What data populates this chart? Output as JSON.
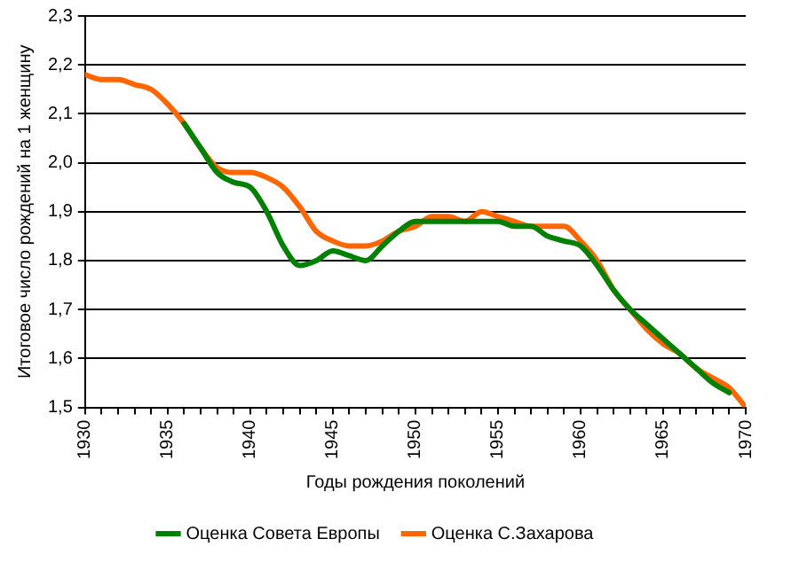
{
  "chart_data": {
    "type": "line",
    "xlabel": "Годы рождения поколений",
    "ylabel": "Итоговое число рождений на 1 женщину",
    "x": [
      1930,
      1931,
      1932,
      1933,
      1934,
      1935,
      1936,
      1937,
      1938,
      1939,
      1940,
      1941,
      1942,
      1943,
      1944,
      1945,
      1946,
      1947,
      1948,
      1949,
      1950,
      1951,
      1952,
      1953,
      1954,
      1955,
      1956,
      1957,
      1958,
      1959,
      1960,
      1961,
      1962,
      1963,
      1964,
      1965,
      1966,
      1967,
      1968,
      1969,
      1970
    ],
    "series": [
      {
        "name": "Оценка Совета Европы",
        "color": "#008000",
        "values": [
          null,
          null,
          null,
          null,
          null,
          null,
          2.08,
          2.03,
          1.98,
          1.96,
          1.95,
          1.9,
          1.83,
          1.79,
          1.8,
          1.82,
          1.81,
          1.8,
          1.83,
          1.86,
          1.88,
          1.88,
          1.88,
          1.88,
          1.88,
          1.88,
          1.87,
          1.87,
          1.85,
          1.84,
          1.83,
          1.79,
          1.74,
          1.7,
          1.67,
          1.64,
          1.61,
          1.58,
          1.55,
          1.53,
          null
        ]
      },
      {
        "name": "Оценка С.Захарова",
        "color": "#ff6600",
        "values": [
          2.18,
          2.17,
          2.17,
          2.16,
          2.15,
          2.12,
          2.08,
          2.03,
          1.99,
          1.98,
          1.98,
          1.97,
          1.95,
          1.91,
          1.86,
          1.84,
          1.83,
          1.83,
          1.84,
          1.86,
          1.87,
          1.89,
          1.89,
          1.88,
          1.9,
          1.89,
          1.88,
          1.87,
          1.87,
          1.87,
          1.84,
          1.8,
          1.74,
          1.7,
          1.66,
          1.63,
          1.61,
          1.58,
          1.56,
          1.54,
          1.5
        ]
      }
    ],
    "xlim": [
      1930,
      1970
    ],
    "xticks": [
      1930,
      {
        "value": 1931,
        "label": null
      },
      {
        "value": 1932,
        "label": null
      },
      {
        "value": 1933,
        "label": null
      },
      {
        "value": 1934,
        "label": null
      },
      1935,
      {
        "value": 1936,
        "label": null
      },
      {
        "value": 1937,
        "label": null
      },
      {
        "value": 1938,
        "label": null
      },
      {
        "value": 1939,
        "label": null
      },
      1940,
      {
        "value": 1941,
        "label": null
      },
      {
        "value": 1942,
        "label": null
      },
      {
        "value": 1943,
        "label": null
      },
      {
        "value": 1944,
        "label": null
      },
      1945,
      {
        "value": 1946,
        "label": null
      },
      {
        "value": 1947,
        "label": null
      },
      {
        "value": 1948,
        "label": null
      },
      {
        "value": 1949,
        "label": null
      },
      1950,
      {
        "value": 1951,
        "label": null
      },
      {
        "value": 1952,
        "label": null
      },
      {
        "value": 1953,
        "label": null
      },
      {
        "value": 1954,
        "label": null
      },
      1955,
      {
        "value": 1956,
        "label": null
      },
      {
        "value": 1957,
        "label": null
      },
      {
        "value": 1958,
        "label": null
      },
      {
        "value": 1959,
        "label": null
      },
      1960,
      {
        "value": 1961,
        "label": null
      },
      {
        "value": 1962,
        "label": null
      },
      {
        "value": 1963,
        "label": null
      },
      {
        "value": 1964,
        "label": null
      },
      1965,
      {
        "value": 1966,
        "label": null
      },
      {
        "value": 1967,
        "label": null
      },
      {
        "value": 1968,
        "label": null
      },
      {
        "value": 1969,
        "label": null
      },
      1970
    ],
    "ylim": [
      1.5,
      2.3
    ],
    "yticks": [
      {
        "value": 1.5,
        "label": "1,5"
      },
      {
        "value": 1.6,
        "label": "1,6"
      },
      {
        "value": 1.7,
        "label": "1,7"
      },
      {
        "value": 1.8,
        "label": "1,8"
      },
      {
        "value": 1.9,
        "label": "1,9"
      },
      {
        "value": 2.0,
        "label": "2,0"
      },
      {
        "value": 2.1,
        "label": "2,1"
      },
      {
        "value": 2.2,
        "label": "2,2"
      },
      {
        "value": 2.3,
        "label": "2,3"
      }
    ],
    "grid": "y",
    "legend": "bottom",
    "marker": "none",
    "line_style": "solid"
  }
}
